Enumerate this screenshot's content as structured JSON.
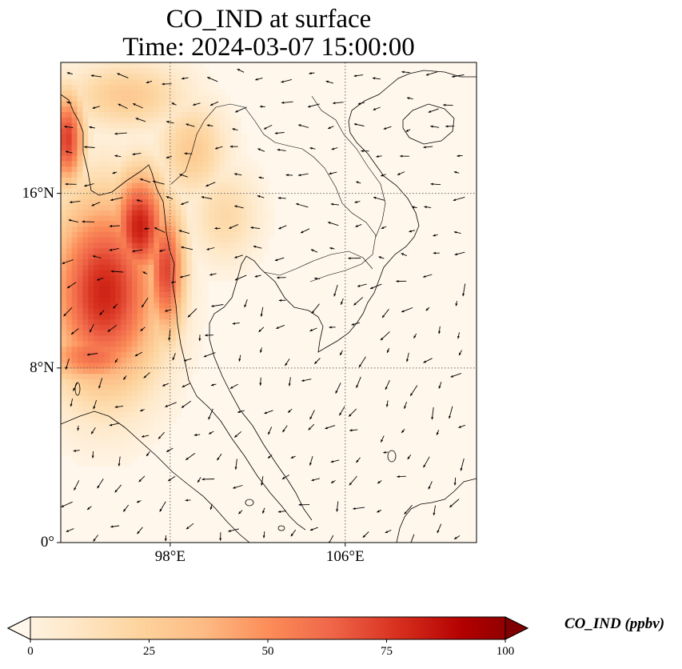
{
  "title_line1": "CO_IND at surface",
  "title_line2": "Time: 2024-03-07 15:00:00",
  "lat_ticks": [
    {
      "label": "16°N",
      "lat": 16
    },
    {
      "label": "8°N",
      "lat": 8
    },
    {
      "label": "0°",
      "lat": 0
    }
  ],
  "lon_ticks": [
    {
      "label": "98°E",
      "lon": 98
    },
    {
      "label": "106°E",
      "lon": 106
    }
  ],
  "extent": {
    "lon_min": 93,
    "lon_max": 112,
    "lat_min": 0,
    "lat_max": 22
  },
  "colorbar": {
    "label": "CO_IND (ppbv)",
    "min": 0,
    "max": 100,
    "ticks": [
      "0",
      "25",
      "50",
      "75",
      "100"
    ],
    "tick_values": [
      0,
      25,
      50,
      75,
      100
    ],
    "colormap": "OrRd",
    "colors": [
      "#fff7ec",
      "#fee8c8",
      "#fdd49e",
      "#fdbb84",
      "#fc8d59",
      "#ef6548",
      "#d7301f",
      "#b30000",
      "#7f0000"
    ],
    "extend": "both"
  },
  "field": {
    "variable": "CO_IND",
    "units": "ppbv",
    "level": "surface",
    "hotspots": [
      {
        "lon": 95.0,
        "lat": 11.5,
        "value": 78,
        "sx": 2.6,
        "sy": 4.5
      },
      {
        "lon": 96.6,
        "lat": 14.5,
        "value": 80,
        "sx": 1.3,
        "sy": 2.6
      },
      {
        "lon": 97.8,
        "lat": 12.5,
        "value": 70,
        "sx": 0.9,
        "sy": 3.2
      },
      {
        "lon": 93.3,
        "lat": 18.5,
        "value": 72,
        "sx": 0.8,
        "sy": 2.2
      },
      {
        "lon": 94.5,
        "lat": 8.6,
        "value": 60,
        "sx": 2.4,
        "sy": 1.4
      },
      {
        "lon": 99.0,
        "lat": 18.0,
        "value": 30,
        "sx": 1.6,
        "sy": 2.2
      },
      {
        "lon": 100.5,
        "lat": 15.0,
        "value": 22,
        "sx": 1.6,
        "sy": 2.2
      },
      {
        "lon": 96.0,
        "lat": 20.5,
        "value": 30,
        "sx": 2.8,
        "sy": 1.6
      }
    ]
  }
}
